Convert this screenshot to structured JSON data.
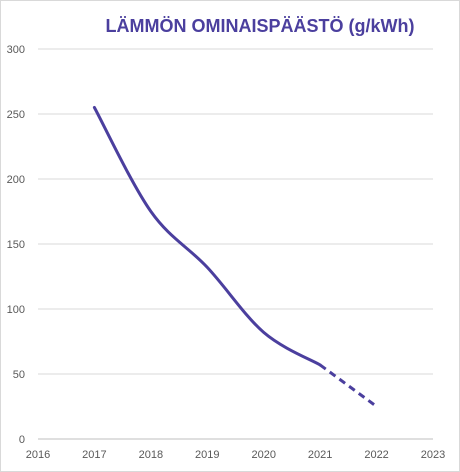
{
  "chart_data": {
    "type": "line",
    "title": "LÄMMÖN OMINAISPÄÄSTÖ (g/kWh)",
    "xlabel": "",
    "ylabel": "",
    "xlim": [
      2016,
      2023
    ],
    "ylim": [
      0,
      300
    ],
    "x_ticks": [
      "2016",
      "2017",
      "2018",
      "2019",
      "2020",
      "2021",
      "2022",
      "2023"
    ],
    "y_ticks": [
      "0",
      "50",
      "100",
      "150",
      "200",
      "250",
      "300"
    ],
    "grid": true,
    "legend": "none",
    "series": [
      {
        "x": [
          2017,
          2018,
          2019,
          2020,
          2021
        ],
        "y": [
          255,
          175,
          132,
          82,
          57
        ],
        "line_style": "solid",
        "color": "#4B3F9E"
      },
      {
        "x": [
          2021,
          2022
        ],
        "y": [
          57,
          25
        ],
        "line_style": "dashed",
        "color": "#4B3F9E"
      }
    ]
  }
}
